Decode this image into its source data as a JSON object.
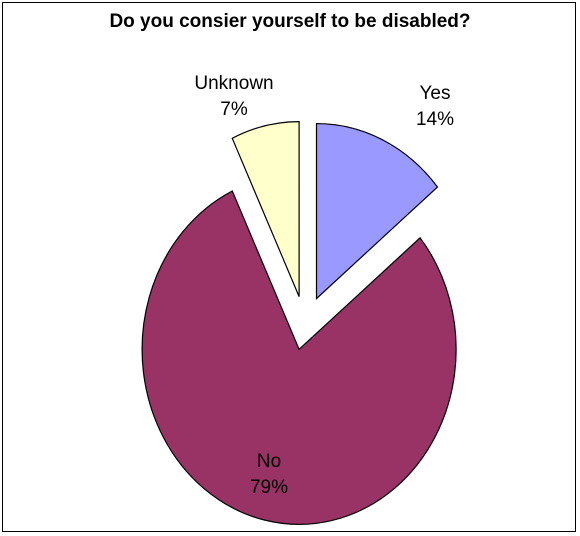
{
  "chart_data": {
    "type": "pie",
    "title": "Do you consier yourself to be disabled?",
    "start_angle_deg": 0,
    "exploded": true,
    "slices": [
      {
        "label": "Yes",
        "value": 14,
        "value_label": "14%",
        "color": "#9999ff"
      },
      {
        "label": "No",
        "value": 79,
        "value_label": "79%",
        "color": "#993366"
      },
      {
        "label": "Unknown",
        "value": 7,
        "value_label": "7%",
        "color": "#ffffcc"
      }
    ]
  }
}
